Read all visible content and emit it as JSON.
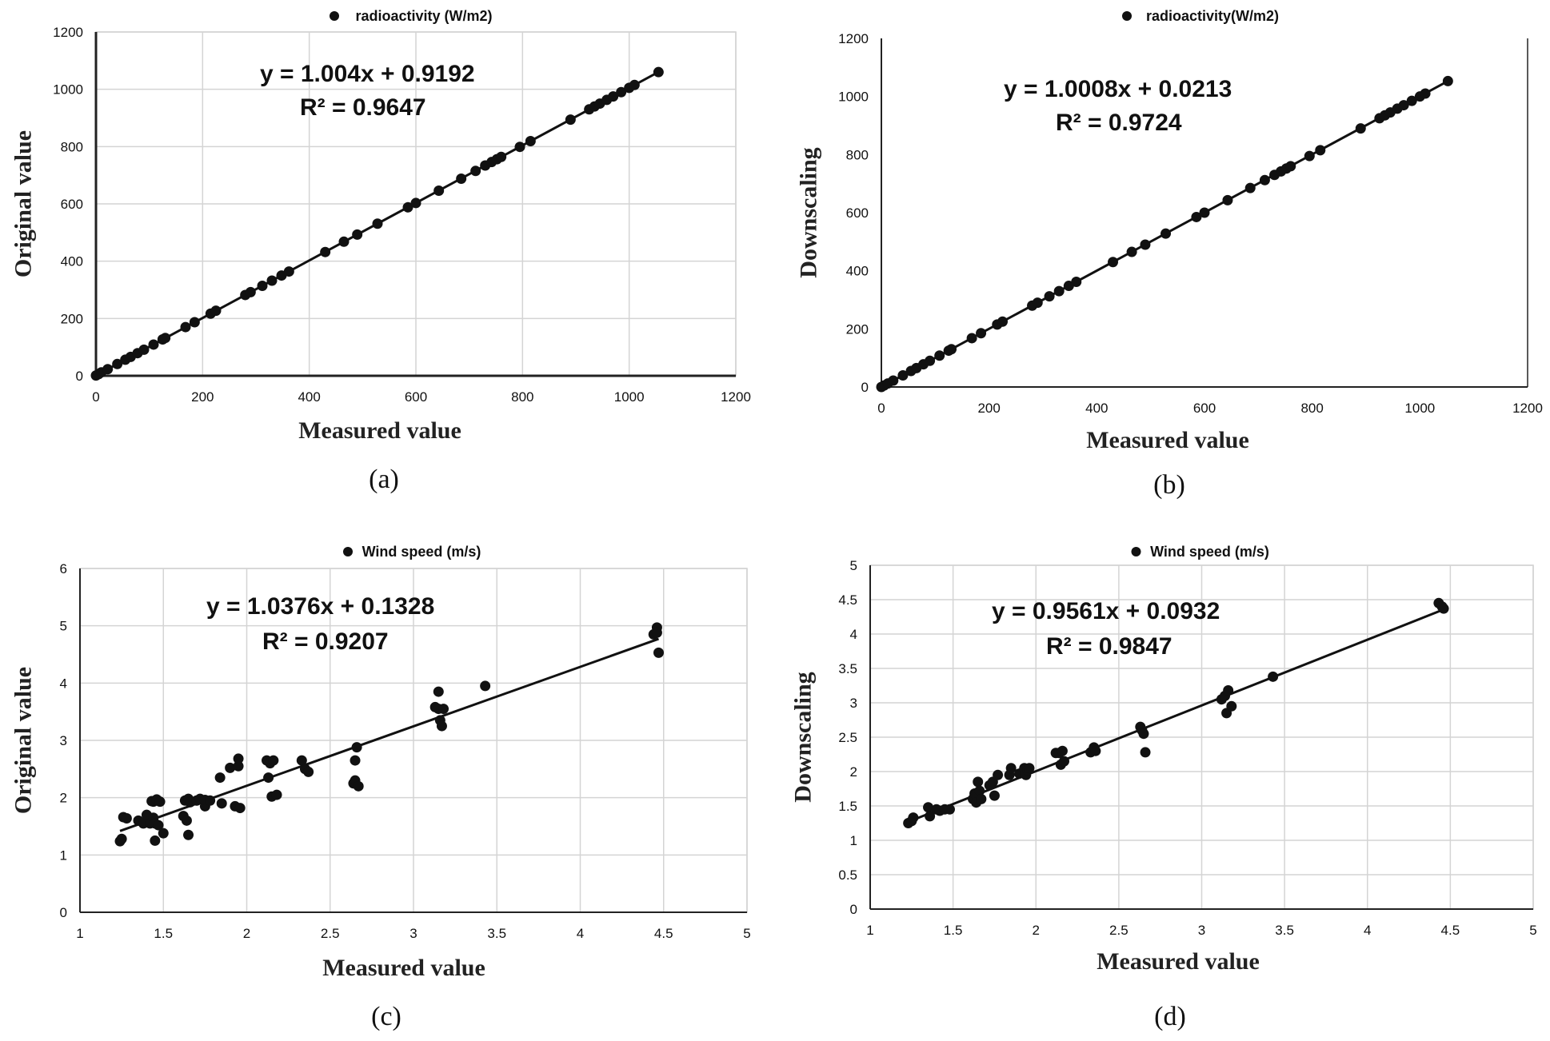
{
  "chart_data": [
    {
      "type": "scatter",
      "panel_label": "(a)",
      "series": [
        {
          "name": "radioactivity (W/m2)",
          "marker": "•"
        }
      ],
      "xlabel": "Measured value",
      "ylabel": "Original value",
      "xlim": [
        0,
        1200
      ],
      "ylim": [
        0,
        1200
      ],
      "xticks": [
        0,
        200,
        400,
        600,
        800,
        1000,
        1200
      ],
      "yticks": [
        0,
        200,
        400,
        600,
        800,
        1000,
        1200
      ],
      "xtick_labels": [
        "0",
        "200",
        "400",
        "600",
        "800",
        "1000",
        "1200"
      ],
      "ytick_labels": [
        "0",
        "200",
        "400",
        "600",
        "800",
        "1000",
        "1200"
      ],
      "grid": true,
      "legend_position": "top",
      "trendline": {
        "slope": 1.004,
        "intercept": 0.9192
      },
      "equation": "y = 1.004x + 0.9192",
      "r2": "R² = 0.9647",
      "x": [
        0,
        5,
        10,
        22,
        40,
        55,
        65,
        78,
        90,
        108,
        125,
        130,
        168,
        185,
        215,
        225,
        280,
        290,
        312,
        330,
        348,
        362,
        430,
        465,
        490,
        528,
        585,
        600,
        643,
        685,
        712,
        730,
        742,
        752,
        760,
        795,
        815,
        890,
        925,
        935,
        945,
        958,
        970,
        985,
        1000,
        1010,
        1055
      ],
      "y": [
        1,
        6,
        12,
        23,
        41,
        56,
        66,
        79,
        91,
        109,
        127,
        132,
        170,
        187,
        217,
        227,
        282,
        292,
        314,
        332,
        350,
        364,
        432,
        468,
        493,
        531,
        588,
        603,
        646,
        688,
        715,
        734,
        746,
        756,
        764,
        799,
        819,
        894,
        930,
        940,
        950,
        963,
        975,
        990,
        1005,
        1015,
        1060
      ]
    },
    {
      "type": "scatter",
      "panel_label": "(b)",
      "series": [
        {
          "name": "radioactivity(W/m2)",
          "marker": "•"
        }
      ],
      "xlabel": "Measured value",
      "ylabel": "Downscaling",
      "xlim": [
        0,
        1200
      ],
      "ylim": [
        0,
        1200
      ],
      "xticks": [
        0,
        200,
        400,
        600,
        800,
        1000,
        1200
      ],
      "yticks": [
        0,
        200,
        400,
        600,
        800,
        1000,
        1200
      ],
      "xtick_labels": [
        "0",
        "200",
        "400",
        "600",
        "800",
        "1000",
        "1200"
      ],
      "ytick_labels": [
        "0",
        "200",
        "400",
        "600",
        "800",
        "1000",
        "1200"
      ],
      "grid": false,
      "legend_position": "top",
      "trendline": {
        "slope": 1.0008,
        "intercept": 0.0213
      },
      "equation": "y = 1.0008x + 0.0213",
      "r2": "R² = 0.9724",
      "x": [
        0,
        5,
        12,
        22,
        40,
        55,
        65,
        78,
        90,
        108,
        125,
        130,
        168,
        185,
        215,
        225,
        280,
        290,
        312,
        330,
        348,
        362,
        430,
        465,
        490,
        528,
        585,
        600,
        643,
        685,
        712,
        730,
        742,
        752,
        760,
        795,
        815,
        890,
        925,
        935,
        945,
        958,
        970,
        985,
        1000,
        1010,
        1052
      ],
      "y": [
        0,
        5,
        12,
        22,
        40,
        55,
        65,
        78,
        90,
        108,
        125,
        130,
        168,
        185,
        215,
        225,
        280,
        290,
        312,
        330,
        348,
        362,
        430,
        465,
        490,
        528,
        585,
        600,
        643,
        685,
        712,
        730,
        742,
        752,
        760,
        795,
        815,
        890,
        925,
        935,
        945,
        958,
        970,
        985,
        1000,
        1010,
        1053
      ]
    },
    {
      "type": "scatter",
      "panel_label": "(c)",
      "series": [
        {
          "name": "Wind speed (m/s)",
          "marker": "•"
        }
      ],
      "xlabel": "Measured value",
      "ylabel": "Original value",
      "xlim": [
        1,
        5
      ],
      "ylim": [
        0,
        6
      ],
      "xticks": [
        1,
        1.5,
        2,
        2.5,
        3,
        3.5,
        4,
        4.5,
        5
      ],
      "yticks": [
        0,
        1,
        2,
        3,
        4,
        5,
        6
      ],
      "xtick_labels": [
        "1",
        "1.5",
        "2",
        "2.5",
        "3",
        "3.5",
        "4",
        "4.5",
        "5"
      ],
      "ytick_labels": [
        "0",
        "1",
        "2",
        "3",
        "4",
        "5",
        "6"
      ],
      "grid": true,
      "legend_position": "top",
      "trendline": {
        "slope": 1.0376,
        "intercept": 0.1328
      },
      "equation": "y = 1.0376x + 0.1328",
      "r2": "R² = 0.9207",
      "x": [
        1.24,
        1.25,
        1.26,
        1.28,
        1.35,
        1.38,
        1.4,
        1.42,
        1.43,
        1.44,
        1.44,
        1.45,
        1.45,
        1.46,
        1.47,
        1.48,
        1.5,
        1.62,
        1.63,
        1.64,
        1.65,
        1.65,
        1.66,
        1.7,
        1.72,
        1.75,
        1.75,
        1.78,
        1.84,
        1.85,
        1.9,
        1.93,
        1.95,
        1.95,
        1.96,
        2.12,
        2.13,
        2.14,
        2.15,
        2.16,
        2.18,
        2.33,
        2.35,
        2.37,
        2.64,
        2.65,
        2.65,
        2.66,
        2.67,
        3.13,
        3.15,
        3.15,
        3.16,
        3.17,
        3.18,
        3.43,
        4.44,
        4.46,
        4.46,
        4.47
      ],
      "y": [
        1.24,
        1.28,
        1.66,
        1.64,
        1.6,
        1.55,
        1.7,
        1.55,
        1.94,
        1.65,
        1.93,
        1.55,
        1.25,
        1.97,
        1.52,
        1.93,
        1.38,
        1.68,
        1.95,
        1.6,
        1.35,
        1.98,
        1.92,
        1.95,
        1.98,
        1.85,
        1.96,
        1.95,
        2.35,
        1.9,
        2.52,
        1.85,
        2.55,
        2.68,
        1.82,
        2.65,
        2.35,
        2.6,
        2.02,
        2.65,
        2.05,
        2.65,
        2.5,
        2.45,
        2.25,
        2.3,
        2.65,
        2.88,
        2.2,
        3.58,
        3.85,
        3.55,
        3.35,
        3.25,
        3.55,
        3.95,
        4.85,
        4.97,
        4.88,
        4.53
      ]
    },
    {
      "type": "scatter",
      "panel_label": "(d)",
      "series": [
        {
          "name": "Wind speed (m/s)",
          "marker": "•"
        }
      ],
      "xlabel": "Measured value",
      "ylabel": "Downscaling",
      "xlim": [
        1,
        5
      ],
      "ylim": [
        0,
        5
      ],
      "xticks": [
        1,
        1.5,
        2,
        2.5,
        3,
        3.5,
        4,
        4.5,
        5
      ],
      "yticks": [
        0,
        0.5,
        1,
        1.5,
        2,
        2.5,
        3,
        3.5,
        4,
        4.5,
        5
      ],
      "xtick_labels": [
        "1",
        "1.5",
        "2",
        "2.5",
        "3",
        "3.5",
        "4",
        "4.5",
        "5"
      ],
      "ytick_labels": [
        "0",
        "0.5",
        "1",
        "1.5",
        "2",
        "2.5",
        "3",
        "3.5",
        "4",
        "4.5",
        "5"
      ],
      "grid": true,
      "legend_position": "top",
      "trendline": {
        "slope": 0.9561,
        "intercept": 0.0932
      },
      "equation": "y = 0.9561x + 0.0932",
      "r2": "R² = 0.9847",
      "x": [
        1.23,
        1.25,
        1.26,
        1.35,
        1.36,
        1.4,
        1.42,
        1.45,
        1.48,
        1.62,
        1.63,
        1.64,
        1.65,
        1.66,
        1.67,
        1.72,
        1.74,
        1.75,
        1.77,
        1.84,
        1.85,
        1.9,
        1.93,
        1.94,
        1.95,
        1.96,
        2.12,
        2.14,
        2.15,
        2.16,
        2.17,
        2.33,
        2.35,
        2.36,
        2.63,
        2.64,
        2.65,
        2.66,
        3.12,
        3.14,
        3.15,
        3.16,
        3.18,
        3.43,
        4.43,
        4.45,
        4.46
      ],
      "y": [
        1.25,
        1.28,
        1.33,
        1.48,
        1.35,
        1.45,
        1.43,
        1.45,
        1.45,
        1.6,
        1.68,
        1.55,
        1.85,
        1.72,
        1.6,
        1.8,
        1.85,
        1.65,
        1.95,
        1.95,
        2.05,
        1.97,
        2.05,
        1.95,
        2.02,
        2.05,
        2.27,
        2.27,
        2.1,
        2.3,
        2.15,
        2.28,
        2.35,
        2.3,
        2.65,
        2.6,
        2.55,
        2.28,
        3.05,
        3.1,
        2.85,
        3.18,
        2.95,
        3.38,
        4.45,
        4.4,
        4.37
      ]
    }
  ]
}
